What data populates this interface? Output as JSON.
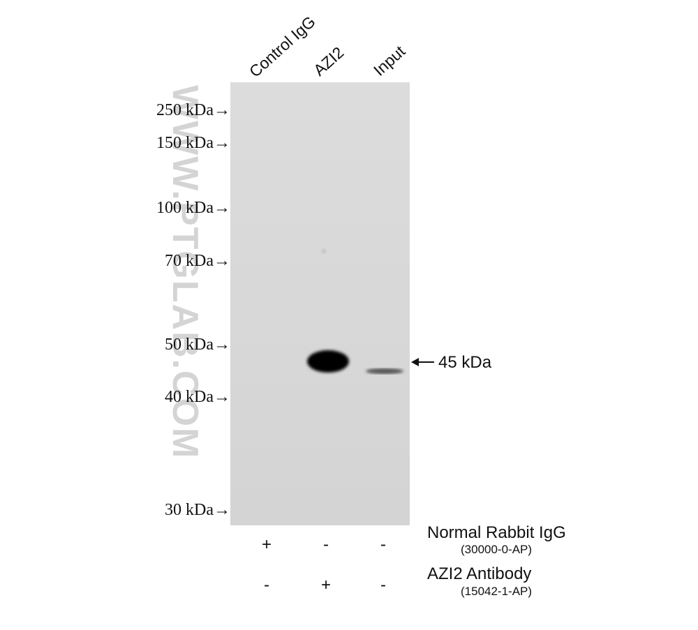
{
  "lanes": [
    "Control IgG",
    "AZI2",
    "Input"
  ],
  "markers": [
    "250 kDa→",
    "150 kDa→",
    "100 kDa→",
    "70 kDa→",
    "50 kDa→",
    "40 kDa→",
    "30 kDa→"
  ],
  "band_label": "45 kDa",
  "watermark": "WWW.PTGLAB.COM",
  "treatments": [
    {
      "name": "Normal Rabbit IgG",
      "catalog": "(30000-0-AP)",
      "signs": [
        "+",
        "-",
        "-"
      ]
    },
    {
      "name": "AZI2 Antibody",
      "catalog": "(15042-1-AP)",
      "signs": [
        "-",
        "+",
        "-"
      ]
    }
  ]
}
